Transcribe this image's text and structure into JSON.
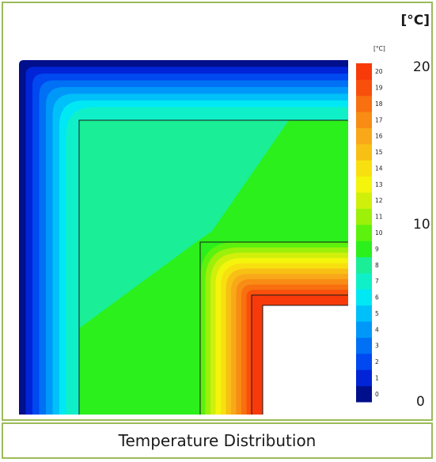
{
  "caption": "Temperature Distribution",
  "colorbar_unit_large": "[°C]",
  "colorbar_unit_small": "[°C]",
  "chart_data": {
    "type": "heatmap",
    "title": "Temperature Distribution",
    "unit": "°C",
    "range": [
      0,
      20
    ],
    "large_ticks": [
      "20",
      "10",
      "0"
    ],
    "levels": [
      0,
      1,
      2,
      3,
      4,
      5,
      6,
      7,
      8,
      9,
      10,
      11,
      12,
      13,
      14,
      15,
      16,
      17,
      18,
      19,
      20
    ],
    "level_colors": [
      "#000f8c",
      "#0024d6",
      "#0048f0",
      "#0070f5",
      "#0098f8",
      "#00c0fa",
      "#00e8f4",
      "#10f0c8",
      "#1aee96",
      "#2cf01c",
      "#5cf20e",
      "#9cf00a",
      "#d0f00c",
      "#f4f40c",
      "#f8e010",
      "#f8c014",
      "#f8a818",
      "#f88c14",
      "#f87010",
      "#f8500c",
      "#f83a0a"
    ]
  }
}
